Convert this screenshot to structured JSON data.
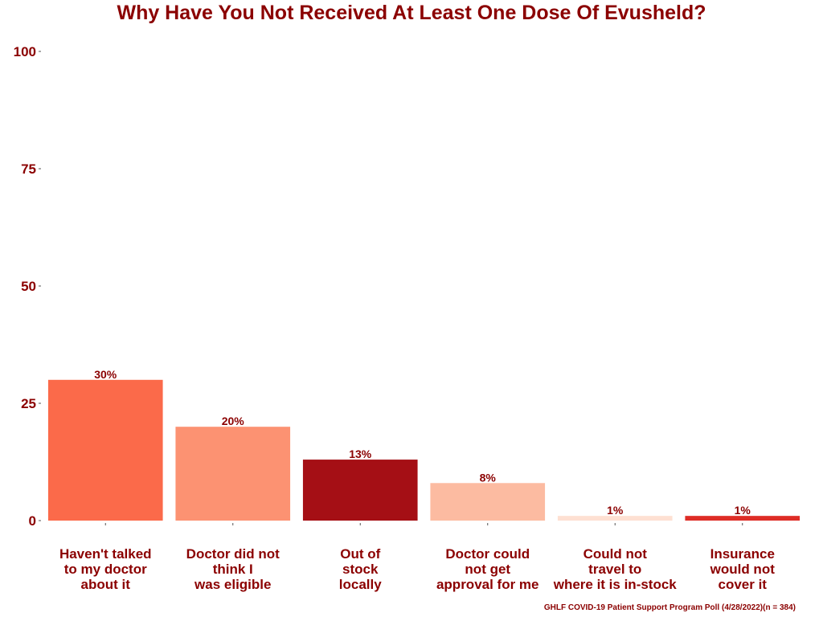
{
  "chart_data": {
    "type": "bar",
    "title": "Why Have You Not Received At Least One Dose Of Evusheld?",
    "categories": [
      [
        "Haven't talked",
        "to my doctor",
        "about it"
      ],
      [
        "Doctor did not",
        "think I",
        "was eligible"
      ],
      [
        "Out of",
        "stock",
        "locally"
      ],
      [
        "Doctor could",
        "not get",
        "approval for me"
      ],
      [
        "Could not",
        "travel to",
        "where it is in-stock"
      ],
      [
        "Insurance",
        "would not",
        "cover it"
      ]
    ],
    "values": [
      30,
      20,
      13,
      8,
      1,
      1
    ],
    "value_labels": [
      "30%",
      "20%",
      "13%",
      "8%",
      "1%",
      "1%"
    ],
    "colors": [
      "#FB6A4A",
      "#FC9272",
      "#A50F15",
      "#FCBBA1",
      "#FEE0D2",
      "#DE2D26"
    ],
    "ylim": [
      0,
      100
    ],
    "yticks": [
      0,
      25,
      50,
      75,
      100
    ],
    "xlabel": "",
    "ylabel": "",
    "grid": false,
    "legend": "none",
    "caption": "GHLF COVID-19 Patient Support Program Poll (4/28/2022)(n = 384)"
  }
}
